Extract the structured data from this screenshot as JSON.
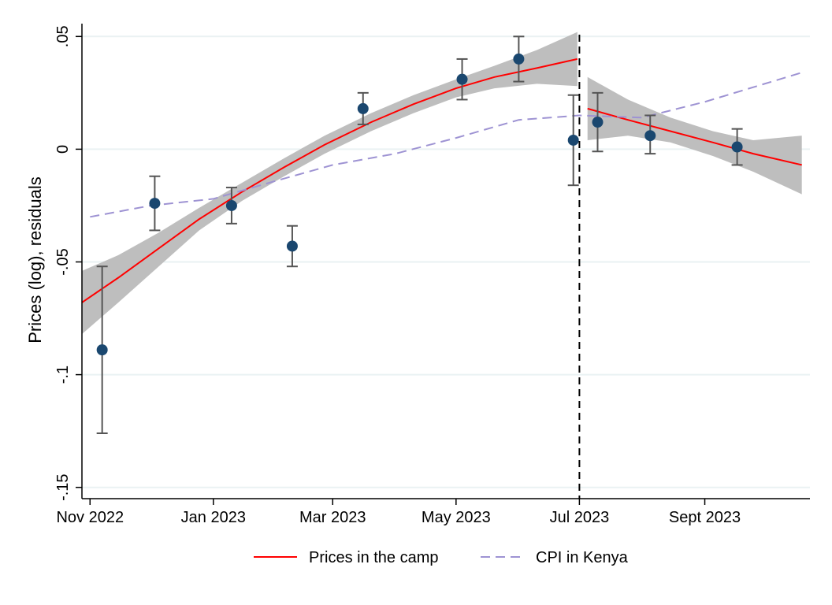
{
  "chart_data": {
    "type": "scatter",
    "title": "",
    "xlabel": "",
    "ylabel": "Prices (log), residuals",
    "xlim": [
      "2022-10-28",
      "2023-10-23"
    ],
    "ylim": [
      -0.155,
      0.055
    ],
    "grid": true,
    "legend_position": "bottom",
    "x_ticks": [
      {
        "date": "2022-11-01",
        "label": "Nov 2022"
      },
      {
        "date": "2023-01-01",
        "label": "Jan 2023"
      },
      {
        "date": "2023-03-01",
        "label": "Mar 2023"
      },
      {
        "date": "2023-05-01",
        "label": "May 2023"
      },
      {
        "date": "2023-07-01",
        "label": "Jul 2023"
      },
      {
        "date": "2023-09-01",
        "label": "Sept 2023"
      }
    ],
    "y_ticks": [
      {
        "value": 0.05,
        "label": ".05"
      },
      {
        "value": 0,
        "label": "0"
      },
      {
        "value": -0.05,
        "label": "-.05"
      },
      {
        "value": -0.1,
        "label": "-.1"
      },
      {
        "value": -0.15,
        "label": "-.15"
      }
    ],
    "cutoff_date": "2023-07-01",
    "series": [
      {
        "key": "points",
        "type": "scatter_errorbar",
        "color": "#1a476f",
        "points": [
          {
            "x": "2022-11-07",
            "y": -0.089,
            "lo": -0.126,
            "hi": -0.052
          },
          {
            "x": "2022-12-03",
            "y": -0.024,
            "lo": -0.036,
            "hi": -0.012
          },
          {
            "x": "2023-01-10",
            "y": -0.025,
            "lo": -0.033,
            "hi": -0.017
          },
          {
            "x": "2023-02-09",
            "y": -0.043,
            "lo": -0.052,
            "hi": -0.034
          },
          {
            "x": "2023-03-16",
            "y": 0.018,
            "lo": 0.011,
            "hi": 0.025
          },
          {
            "x": "2023-05-04",
            "y": 0.031,
            "lo": 0.022,
            "hi": 0.04
          },
          {
            "x": "2023-06-01",
            "y": 0.04,
            "lo": 0.03,
            "hi": 0.05
          },
          {
            "x": "2023-06-28",
            "y": 0.004,
            "lo": -0.016,
            "hi": 0.024
          },
          {
            "x": "2023-07-10",
            "y": 0.012,
            "lo": -0.001,
            "hi": 0.025
          },
          {
            "x": "2023-08-05",
            "y": 0.006,
            "lo": -0.002,
            "hi": 0.015
          },
          {
            "x": "2023-09-17",
            "y": 0.001,
            "lo": -0.007,
            "hi": 0.009
          }
        ]
      },
      {
        "key": "fit_pre",
        "name": "Prices in the camp",
        "type": "line_band",
        "color": "#ff0000",
        "band_color": "#bebebe",
        "points": [
          {
            "x": "2022-10-28",
            "y": -0.068,
            "lo": -0.082,
            "hi": -0.054
          },
          {
            "x": "2022-11-15",
            "y": -0.057,
            "lo": -0.068,
            "hi": -0.047
          },
          {
            "x": "2022-12-05",
            "y": -0.044,
            "lo": -0.052,
            "hi": -0.037
          },
          {
            "x": "2022-12-25",
            "y": -0.031,
            "lo": -0.036,
            "hi": -0.026
          },
          {
            "x": "2023-01-15",
            "y": -0.019,
            "lo": -0.023,
            "hi": -0.015
          },
          {
            "x": "2023-02-05",
            "y": -0.008,
            "lo": -0.012,
            "hi": -0.004
          },
          {
            "x": "2023-02-25",
            "y": 0.002,
            "lo": -0.002,
            "hi": 0.006
          },
          {
            "x": "2023-03-20",
            "y": 0.012,
            "lo": 0.008,
            "hi": 0.016
          },
          {
            "x": "2023-04-10",
            "y": 0.02,
            "lo": 0.016,
            "hi": 0.024
          },
          {
            "x": "2023-05-01",
            "y": 0.027,
            "lo": 0.023,
            "hi": 0.031
          },
          {
            "x": "2023-05-20",
            "y": 0.032,
            "lo": 0.027,
            "hi": 0.037
          },
          {
            "x": "2023-06-10",
            "y": 0.036,
            "lo": 0.029,
            "hi": 0.044
          },
          {
            "x": "2023-06-30",
            "y": 0.04,
            "lo": 0.028,
            "hi": 0.052
          }
        ]
      },
      {
        "key": "fit_post",
        "type": "line_band",
        "color": "#ff0000",
        "band_color": "#bebebe",
        "points": [
          {
            "x": "2023-07-05",
            "y": 0.018,
            "lo": 0.004,
            "hi": 0.032
          },
          {
            "x": "2023-07-25",
            "y": 0.013,
            "lo": 0.006,
            "hi": 0.022
          },
          {
            "x": "2023-08-15",
            "y": 0.008,
            "lo": 0.003,
            "hi": 0.014
          },
          {
            "x": "2023-09-05",
            "y": 0.003,
            "lo": -0.003,
            "hi": 0.008
          },
          {
            "x": "2023-09-25",
            "y": -0.002,
            "lo": -0.01,
            "hi": 0.004
          },
          {
            "x": "2023-10-19",
            "y": -0.007,
            "lo": -0.02,
            "hi": 0.006
          }
        ]
      },
      {
        "key": "cpi",
        "name": "CPI in Kenya",
        "type": "line",
        "dashed": true,
        "color": "#9e93d3",
        "points": [
          {
            "x": "2022-11-01",
            "y": -0.03
          },
          {
            "x": "2022-12-01",
            "y": -0.025
          },
          {
            "x": "2023-01-01",
            "y": -0.022
          },
          {
            "x": "2023-02-01",
            "y": -0.014
          },
          {
            "x": "2023-03-01",
            "y": -0.007
          },
          {
            "x": "2023-04-01",
            "y": -0.002
          },
          {
            "x": "2023-05-01",
            "y": 0.005
          },
          {
            "x": "2023-06-01",
            "y": 0.013
          },
          {
            "x": "2023-07-01",
            "y": 0.015
          },
          {
            "x": "2023-08-01",
            "y": 0.014
          },
          {
            "x": "2023-09-01",
            "y": 0.021
          },
          {
            "x": "2023-10-19",
            "y": 0.034
          }
        ]
      }
    ],
    "legend": [
      {
        "label": "Prices in the camp",
        "color": "#ff0000",
        "dashed": false
      },
      {
        "label": "CPI in Kenya",
        "color": "#9e93d3",
        "dashed": true
      }
    ]
  }
}
